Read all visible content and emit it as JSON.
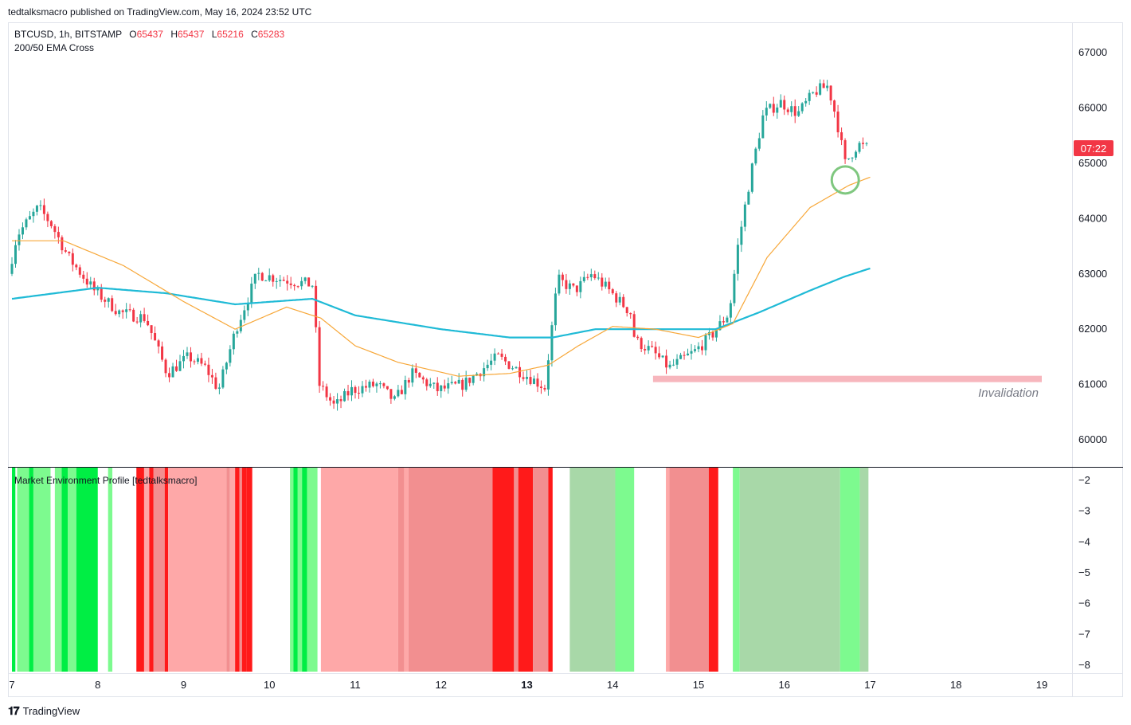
{
  "header": {
    "publisher_line": "tedtalksmacro published on TradingView.com, May 16, 2024 23:52 UTC"
  },
  "legend": {
    "symbol": "BTCUSD, 1h, BITSTAMP",
    "o_label": "O",
    "o_value": "65437",
    "h_label": "H",
    "h_value": "65437",
    "l_label": "L",
    "l_value": "65216",
    "c_label": "C",
    "c_value": "65283",
    "indicator": "200/50 EMA Cross"
  },
  "price_tag": "07:22",
  "annotation": "Invalidation",
  "indicator_panel_title": "Market Environment Profile [tedtalksmacro]",
  "footer": {
    "brand": "TradingView",
    "logo_icon": "tradingview-logo-icon"
  },
  "colors": {
    "up": "#26a69a",
    "down": "#f23645",
    "ema50": "#f7a738",
    "ema200": "#1fbad6",
    "invalidation": "#f7b6bd",
    "circle": "#7fc77f",
    "env_bright_green": "#00ee44",
    "env_light_green": "#7dfa8f",
    "env_pale_green": "#a8d8a8",
    "env_bright_red": "#ff1a1a",
    "env_mid_red": "#f28f90",
    "env_light_red": "#fea8a8"
  },
  "chart_data": [
    {
      "type": "candlestick",
      "title": "BTCUSD, 1h, BITSTAMP",
      "x_ticks": [
        "7",
        "8",
        "9",
        "10",
        "11",
        "12",
        "13",
        "14",
        "15",
        "16",
        "17",
        "18",
        "19"
      ],
      "x_range_days": [
        7,
        19.4
      ],
      "y_ticks": [
        "67000",
        "66000",
        "65000",
        "64000",
        "63000",
        "62000",
        "61000",
        "60000"
      ],
      "ylim": [
        59500,
        67600
      ],
      "last_price": 65283,
      "price_path_keypoints": [
        {
          "day": 7.0,
          "price": 63000
        },
        {
          "day": 7.1,
          "price": 63700
        },
        {
          "day": 7.35,
          "price": 64200
        },
        {
          "day": 7.5,
          "price": 63900
        },
        {
          "day": 7.7,
          "price": 63300
        },
        {
          "day": 8.0,
          "price": 62700
        },
        {
          "day": 8.3,
          "price": 62300
        },
        {
          "day": 8.6,
          "price": 62200
        },
        {
          "day": 8.85,
          "price": 61200
        },
        {
          "day": 9.1,
          "price": 61500
        },
        {
          "day": 9.3,
          "price": 61300
        },
        {
          "day": 9.45,
          "price": 60900
        },
        {
          "day": 9.65,
          "price": 62000
        },
        {
          "day": 9.9,
          "price": 63000
        },
        {
          "day": 10.2,
          "price": 62900
        },
        {
          "day": 10.55,
          "price": 62800
        },
        {
          "day": 10.62,
          "price": 61000
        },
        {
          "day": 10.8,
          "price": 60600
        },
        {
          "day": 11.0,
          "price": 60900
        },
        {
          "day": 11.3,
          "price": 61000
        },
        {
          "day": 11.5,
          "price": 60700
        },
        {
          "day": 11.7,
          "price": 61200
        },
        {
          "day": 12.0,
          "price": 60900
        },
        {
          "day": 12.3,
          "price": 61000
        },
        {
          "day": 12.7,
          "price": 61500
        },
        {
          "day": 13.0,
          "price": 61200
        },
        {
          "day": 13.25,
          "price": 60950
        },
        {
          "day": 13.4,
          "price": 62900
        },
        {
          "day": 13.6,
          "price": 62700
        },
        {
          "day": 13.8,
          "price": 63000
        },
        {
          "day": 14.0,
          "price": 62700
        },
        {
          "day": 14.25,
          "price": 62300
        },
        {
          "day": 14.3,
          "price": 61800
        },
        {
          "day": 14.5,
          "price": 61600
        },
        {
          "day": 14.7,
          "price": 61300
        },
        {
          "day": 15.0,
          "price": 61600
        },
        {
          "day": 15.2,
          "price": 61900
        },
        {
          "day": 15.4,
          "price": 62300
        },
        {
          "day": 15.5,
          "price": 63500
        },
        {
          "day": 15.65,
          "price": 64800
        },
        {
          "day": 15.8,
          "price": 65900
        },
        {
          "day": 16.0,
          "price": 66100
        },
        {
          "day": 16.2,
          "price": 65900
        },
        {
          "day": 16.4,
          "price": 66300
        },
        {
          "day": 16.55,
          "price": 66400
        },
        {
          "day": 16.65,
          "price": 65800
        },
        {
          "day": 16.75,
          "price": 65000
        },
        {
          "day": 16.9,
          "price": 65350
        },
        {
          "day": 16.98,
          "price": 65283
        }
      ],
      "ema50": [
        {
          "day": 7.0,
          "price": 63600
        },
        {
          "day": 7.6,
          "price": 63600
        },
        {
          "day": 8.3,
          "price": 63150
        },
        {
          "day": 9.0,
          "price": 62500
        },
        {
          "day": 9.6,
          "price": 62000
        },
        {
          "day": 10.2,
          "price": 62400
        },
        {
          "day": 10.6,
          "price": 62200
        },
        {
          "day": 11.0,
          "price": 61700
        },
        {
          "day": 11.5,
          "price": 61400
        },
        {
          "day": 12.2,
          "price": 61150
        },
        {
          "day": 12.8,
          "price": 61200
        },
        {
          "day": 13.25,
          "price": 61350
        },
        {
          "day": 13.6,
          "price": 61700
        },
        {
          "day": 14.0,
          "price": 62050
        },
        {
          "day": 14.5,
          "price": 62000
        },
        {
          "day": 15.0,
          "price": 61850
        },
        {
          "day": 15.4,
          "price": 62100
        },
        {
          "day": 15.8,
          "price": 63300
        },
        {
          "day": 16.3,
          "price": 64200
        },
        {
          "day": 16.75,
          "price": 64600
        },
        {
          "day": 17.0,
          "price": 64750
        }
      ],
      "ema200": [
        {
          "day": 7.0,
          "price": 62550
        },
        {
          "day": 7.5,
          "price": 62650
        },
        {
          "day": 8.0,
          "price": 62750
        },
        {
          "day": 8.8,
          "price": 62650
        },
        {
          "day": 9.6,
          "price": 62450
        },
        {
          "day": 10.5,
          "price": 62550
        },
        {
          "day": 11.0,
          "price": 62250
        },
        {
          "day": 12.0,
          "price": 62000
        },
        {
          "day": 12.8,
          "price": 61850
        },
        {
          "day": 13.3,
          "price": 61850
        },
        {
          "day": 13.8,
          "price": 62000
        },
        {
          "day": 14.5,
          "price": 62000
        },
        {
          "day": 15.2,
          "price": 62000
        },
        {
          "day": 15.7,
          "price": 62300
        },
        {
          "day": 16.3,
          "price": 62700
        },
        {
          "day": 16.7,
          "price": 62950
        },
        {
          "day": 17.0,
          "price": 63100
        }
      ],
      "invalidation_level": {
        "price": 61100,
        "from_day": 14.47,
        "to_day": 19.0,
        "label": "Invalidation"
      },
      "highlight_circle": {
        "day": 16.71,
        "price": 64700
      }
    },
    {
      "type": "heatmap",
      "title": "Market Environment Profile [tedtalksmacro]",
      "y_ticks": [
        "−2",
        "−3",
        "−4",
        "−5",
        "−6",
        "−7",
        "−8"
      ],
      "ylim": [
        -8,
        -2
      ],
      "bands": [
        {
          "from": 7.0,
          "to": 7.04,
          "color": "env_bright_green"
        },
        {
          "from": 7.06,
          "to": 7.2,
          "color": "env_light_green"
        },
        {
          "from": 7.2,
          "to": 7.25,
          "color": "env_bright_green"
        },
        {
          "from": 7.25,
          "to": 7.45,
          "color": "env_light_green"
        },
        {
          "from": 7.5,
          "to": 7.58,
          "color": "env_light_green"
        },
        {
          "from": 7.58,
          "to": 7.65,
          "color": "env_bright_green"
        },
        {
          "from": 7.65,
          "to": 7.75,
          "color": "env_light_green"
        },
        {
          "from": 7.75,
          "to": 8.0,
          "color": "env_bright_green"
        },
        {
          "from": 8.12,
          "to": 8.17,
          "color": "env_light_green"
        },
        {
          "from": 8.45,
          "to": 8.54,
          "color": "env_bright_red"
        },
        {
          "from": 8.54,
          "to": 8.6,
          "color": "env_light_red"
        },
        {
          "from": 8.6,
          "to": 8.65,
          "color": "env_bright_red"
        },
        {
          "from": 8.65,
          "to": 8.78,
          "color": "env_mid_red"
        },
        {
          "from": 8.78,
          "to": 8.82,
          "color": "env_bright_red"
        },
        {
          "from": 8.82,
          "to": 9.5,
          "color": "env_light_red"
        },
        {
          "from": 9.5,
          "to": 9.54,
          "color": "env_mid_red"
        },
        {
          "from": 9.54,
          "to": 9.6,
          "color": "env_light_red"
        },
        {
          "from": 9.6,
          "to": 9.65,
          "color": "env_bright_red"
        },
        {
          "from": 9.65,
          "to": 9.68,
          "color": "env_mid_red"
        },
        {
          "from": 9.68,
          "to": 9.73,
          "color": "env_bright_red"
        },
        {
          "from": 9.73,
          "to": 9.8,
          "color": "env_bright_red"
        },
        {
          "from": 10.24,
          "to": 10.28,
          "color": "env_light_green"
        },
        {
          "from": 10.28,
          "to": 10.33,
          "color": "env_bright_green"
        },
        {
          "from": 10.33,
          "to": 10.38,
          "color": "env_light_green"
        },
        {
          "from": 10.38,
          "to": 10.44,
          "color": "env_bright_green"
        },
        {
          "from": 10.44,
          "to": 10.56,
          "color": "env_light_green"
        },
        {
          "from": 10.6,
          "to": 11.5,
          "color": "env_light_red"
        },
        {
          "from": 11.5,
          "to": 11.57,
          "color": "env_mid_red"
        },
        {
          "from": 11.57,
          "to": 11.62,
          "color": "env_light_red"
        },
        {
          "from": 11.62,
          "to": 12.6,
          "color": "env_mid_red"
        },
        {
          "from": 12.6,
          "to": 12.85,
          "color": "env_bright_red"
        },
        {
          "from": 12.85,
          "to": 12.9,
          "color": "env_mid_red"
        },
        {
          "from": 12.9,
          "to": 13.07,
          "color": "env_bright_red"
        },
        {
          "from": 13.07,
          "to": 13.25,
          "color": "env_mid_red"
        },
        {
          "from": 13.25,
          "to": 13.3,
          "color": "env_bright_red"
        },
        {
          "from": 13.5,
          "to": 14.03,
          "color": "env_pale_green"
        },
        {
          "from": 14.03,
          "to": 14.25,
          "color": "env_light_green"
        },
        {
          "from": 14.62,
          "to": 14.66,
          "color": "env_light_red"
        },
        {
          "from": 14.66,
          "to": 15.12,
          "color": "env_mid_red"
        },
        {
          "from": 15.12,
          "to": 15.23,
          "color": "env_bright_red"
        },
        {
          "from": 15.4,
          "to": 15.48,
          "color": "env_light_green"
        },
        {
          "from": 15.48,
          "to": 16.65,
          "color": "env_pale_green"
        },
        {
          "from": 16.65,
          "to": 16.88,
          "color": "env_light_green"
        },
        {
          "from": 16.88,
          "to": 16.98,
          "color": "env_pale_green"
        }
      ]
    }
  ]
}
